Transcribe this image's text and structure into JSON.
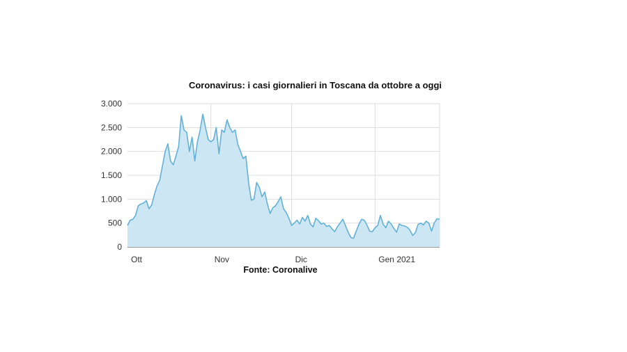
{
  "chart_data": {
    "type": "area",
    "title": "Coronavirus: i casi giornalieri in Toscana da ottobre a oggi",
    "source": "Fonte: Coronalive",
    "ylim": [
      0,
      3000
    ],
    "y_ticks": [
      0,
      500,
      1000,
      1500,
      2000,
      2500,
      3000
    ],
    "y_tick_labels": [
      "0",
      "500",
      "1.000",
      "1.500",
      "2.000",
      "2.500",
      "3.000"
    ],
    "x_range": [
      "2020-10-01",
      "2021-01-25"
    ],
    "x_ticks": [
      {
        "date": "2020-10-01",
        "label": "Ott"
      },
      {
        "date": "2020-11-01",
        "label": "Nov"
      },
      {
        "date": "2020-12-01",
        "label": "Dic"
      },
      {
        "date": "2021-01-01",
        "label": "Gen 2021"
      }
    ],
    "grid": true,
    "colors": {
      "fill": "#cde6f4",
      "line": "#62b1d6",
      "grid": "#dddddd"
    },
    "series": [
      {
        "values": [
          [
            "2020-10-01",
            450
          ],
          [
            "2020-10-02",
            560
          ],
          [
            "2020-10-03",
            580
          ],
          [
            "2020-10-04",
            660
          ],
          [
            "2020-10-05",
            860
          ],
          [
            "2020-10-06",
            900
          ],
          [
            "2020-10-07",
            920
          ],
          [
            "2020-10-08",
            970
          ],
          [
            "2020-10-09",
            800
          ],
          [
            "2020-10-10",
            880
          ],
          [
            "2020-10-11",
            1100
          ],
          [
            "2020-10-12",
            1280
          ],
          [
            "2020-10-13",
            1400
          ],
          [
            "2020-10-14",
            1700
          ],
          [
            "2020-10-15",
            2000
          ],
          [
            "2020-10-16",
            2160
          ],
          [
            "2020-10-17",
            1800
          ],
          [
            "2020-10-18",
            1720
          ],
          [
            "2020-10-19",
            1900
          ],
          [
            "2020-10-20",
            2100
          ],
          [
            "2020-10-21",
            2750
          ],
          [
            "2020-10-22",
            2450
          ],
          [
            "2020-10-23",
            2400
          ],
          [
            "2020-10-24",
            2000
          ],
          [
            "2020-10-25",
            2300
          ],
          [
            "2020-10-26",
            1800
          ],
          [
            "2020-10-27",
            2200
          ],
          [
            "2020-10-28",
            2450
          ],
          [
            "2020-10-29",
            2780
          ],
          [
            "2020-10-30",
            2500
          ],
          [
            "2020-10-31",
            2250
          ],
          [
            "2020-11-01",
            2200
          ],
          [
            "2020-11-02",
            2250
          ],
          [
            "2020-11-03",
            2500
          ],
          [
            "2020-11-04",
            1950
          ],
          [
            "2020-11-05",
            2450
          ],
          [
            "2020-11-06",
            2400
          ],
          [
            "2020-11-07",
            2660
          ],
          [
            "2020-11-08",
            2500
          ],
          [
            "2020-11-09",
            2400
          ],
          [
            "2020-11-10",
            2450
          ],
          [
            "2020-11-11",
            2150
          ],
          [
            "2020-11-12",
            2000
          ],
          [
            "2020-11-13",
            1850
          ],
          [
            "2020-11-14",
            1900
          ],
          [
            "2020-11-15",
            1350
          ],
          [
            "2020-11-16",
            980
          ],
          [
            "2020-11-17",
            1000
          ],
          [
            "2020-11-18",
            1350
          ],
          [
            "2020-11-19",
            1250
          ],
          [
            "2020-11-20",
            1050
          ],
          [
            "2020-11-21",
            1150
          ],
          [
            "2020-11-22",
            900
          ],
          [
            "2020-11-23",
            700
          ],
          [
            "2020-11-24",
            820
          ],
          [
            "2020-11-25",
            860
          ],
          [
            "2020-11-26",
            950
          ],
          [
            "2020-11-27",
            1050
          ],
          [
            "2020-11-28",
            800
          ],
          [
            "2020-11-29",
            720
          ],
          [
            "2020-11-30",
            600
          ],
          [
            "2020-12-01",
            450
          ],
          [
            "2020-12-02",
            500
          ],
          [
            "2020-12-03",
            560
          ],
          [
            "2020-12-04",
            480
          ],
          [
            "2020-12-05",
            620
          ],
          [
            "2020-12-06",
            540
          ],
          [
            "2020-12-07",
            660
          ],
          [
            "2020-12-08",
            480
          ],
          [
            "2020-12-09",
            420
          ],
          [
            "2020-12-10",
            600
          ],
          [
            "2020-12-11",
            550
          ],
          [
            "2020-12-12",
            480
          ],
          [
            "2020-12-13",
            500
          ],
          [
            "2020-12-14",
            430
          ],
          [
            "2020-12-15",
            450
          ],
          [
            "2020-12-16",
            380
          ],
          [
            "2020-12-17",
            320
          ],
          [
            "2020-12-18",
            420
          ],
          [
            "2020-12-19",
            500
          ],
          [
            "2020-12-20",
            580
          ],
          [
            "2020-12-21",
            450
          ],
          [
            "2020-12-22",
            310
          ],
          [
            "2020-12-23",
            200
          ],
          [
            "2020-12-24",
            180
          ],
          [
            "2020-12-25",
            330
          ],
          [
            "2020-12-26",
            470
          ],
          [
            "2020-12-27",
            580
          ],
          [
            "2020-12-28",
            560
          ],
          [
            "2020-12-29",
            460
          ],
          [
            "2020-12-30",
            330
          ],
          [
            "2020-12-31",
            320
          ],
          [
            "2021-01-01",
            400
          ],
          [
            "2021-01-02",
            450
          ],
          [
            "2021-01-03",
            660
          ],
          [
            "2021-01-04",
            480
          ],
          [
            "2021-01-05",
            400
          ],
          [
            "2021-01-06",
            540
          ],
          [
            "2021-01-07",
            480
          ],
          [
            "2021-01-08",
            390
          ],
          [
            "2021-01-09",
            310
          ],
          [
            "2021-01-10",
            480
          ],
          [
            "2021-01-11",
            450
          ],
          [
            "2021-01-12",
            440
          ],
          [
            "2021-01-13",
            410
          ],
          [
            "2021-01-14",
            350
          ],
          [
            "2021-01-15",
            240
          ],
          [
            "2021-01-16",
            300
          ],
          [
            "2021-01-17",
            470
          ],
          [
            "2021-01-18",
            500
          ],
          [
            "2021-01-19",
            460
          ],
          [
            "2021-01-20",
            540
          ],
          [
            "2021-01-21",
            500
          ],
          [
            "2021-01-22",
            330
          ],
          [
            "2021-01-23",
            500
          ],
          [
            "2021-01-24",
            590
          ],
          [
            "2021-01-25",
            580
          ]
        ]
      }
    ]
  }
}
